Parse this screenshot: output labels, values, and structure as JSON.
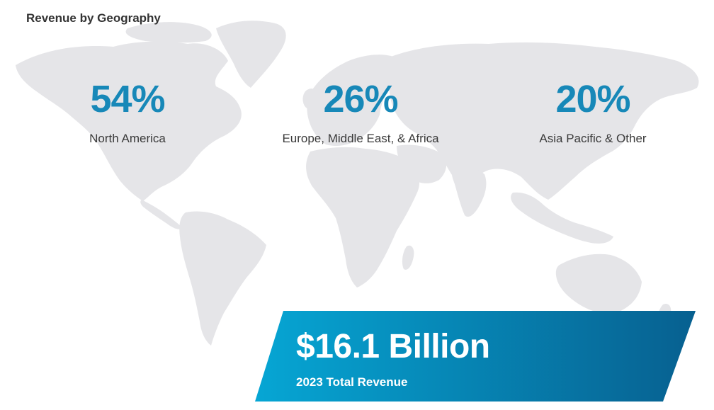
{
  "title": "Revenue by Geography",
  "colors": {
    "accent": "#1788b8",
    "banner_start": "#06a6d4",
    "banner_end": "#076090",
    "map_land": "#e5e5e8"
  },
  "regions": [
    {
      "percent": "54%",
      "value": 54,
      "label": "North America"
    },
    {
      "percent": "26%",
      "value": 26,
      "label": "Europe, Middle East, & Africa"
    },
    {
      "percent": "20%",
      "value": 20,
      "label": "Asia Pacific & Other"
    }
  ],
  "total": {
    "amount": "$16.1 Billion",
    "label": "2023 Total Revenue"
  }
}
